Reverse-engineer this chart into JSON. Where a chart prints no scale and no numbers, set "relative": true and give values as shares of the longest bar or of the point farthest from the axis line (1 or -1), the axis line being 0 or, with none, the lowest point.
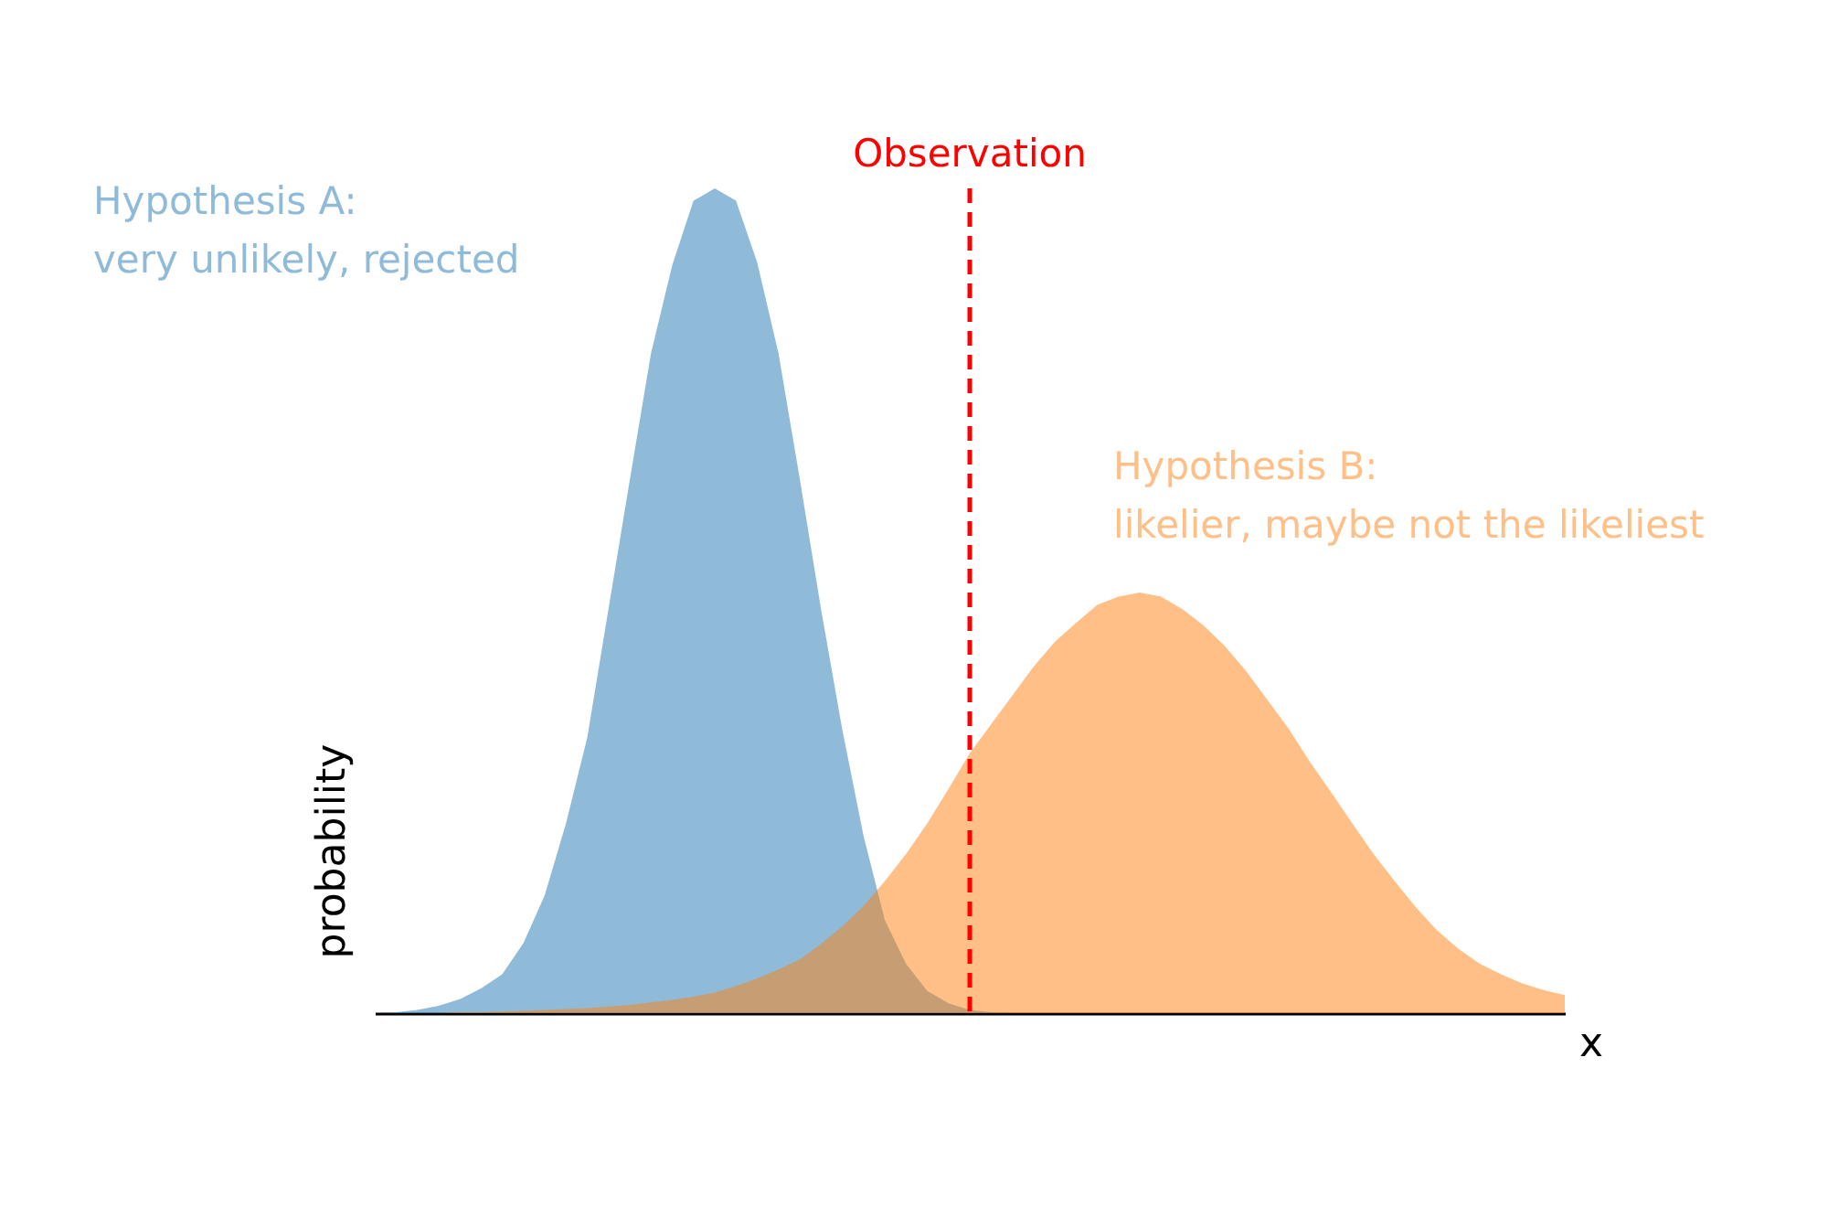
{
  "chart_data": {
    "type": "area",
    "relative": true,
    "categories": [
      null,
      null,
      null,
      null,
      null,
      null,
      null,
      null,
      null,
      null,
      null,
      null,
      null,
      null,
      null,
      null,
      null,
      null,
      null,
      null,
      null,
      null,
      null,
      null,
      null,
      null,
      null,
      null,
      null,
      null,
      null,
      null,
      null,
      null,
      null,
      null,
      null,
      null,
      null,
      null,
      null,
      null,
      null,
      null,
      null,
      null,
      null,
      null,
      null,
      null,
      null,
      null,
      null,
      null,
      null,
      null,
      null
    ],
    "xlabel": "x",
    "ylabel": "probability",
    "grid": false,
    "series": [
      {
        "name": "Hypothesis A:\nvery unlikely, rejected",
        "color": "#8fbbd9",
        "values": [
          0,
          0.001,
          0.004,
          0.009,
          0.017,
          0.03,
          0.047,
          0.085,
          0.143,
          0.23,
          0.334,
          0.49,
          0.646,
          0.8,
          0.907,
          0.985,
          1,
          0.985,
          0.91,
          0.8,
          0.648,
          0.49,
          0.344,
          0.215,
          0.113,
          0.06,
          0.027,
          0.012,
          0.004,
          0.001,
          0,
          0,
          0,
          0,
          0,
          0,
          0,
          0,
          0,
          0,
          0,
          0,
          0,
          0,
          0,
          0,
          0,
          0,
          0,
          0,
          0,
          0,
          0,
          0,
          0,
          0,
          0
        ]
      },
      {
        "name": "Hypothesis B:\nlikelier, maybe not the likeliest",
        "color": "#ffbf86",
        "values": [
          0,
          0,
          0,
          0,
          0.001,
          0.001,
          0.002,
          0.003,
          0.004,
          0.005,
          0.006,
          0.008,
          0.01,
          0.013,
          0.016,
          0.02,
          0.025,
          0.033,
          0.042,
          0.053,
          0.065,
          0.084,
          0.105,
          0.13,
          0.16,
          0.193,
          0.23,
          0.272,
          0.315,
          0.35,
          0.385,
          0.42,
          0.45,
          0.473,
          0.495,
          0.505,
          0.51,
          0.505,
          0.49,
          0.47,
          0.445,
          0.415,
          0.38,
          0.345,
          0.305,
          0.268,
          0.23,
          0.193,
          0.16,
          0.128,
          0.1,
          0.078,
          0.06,
          0.047,
          0.036,
          0.028,
          0.022
        ]
      }
    ],
    "annotations": [
      "Observation"
    ]
  }
}
